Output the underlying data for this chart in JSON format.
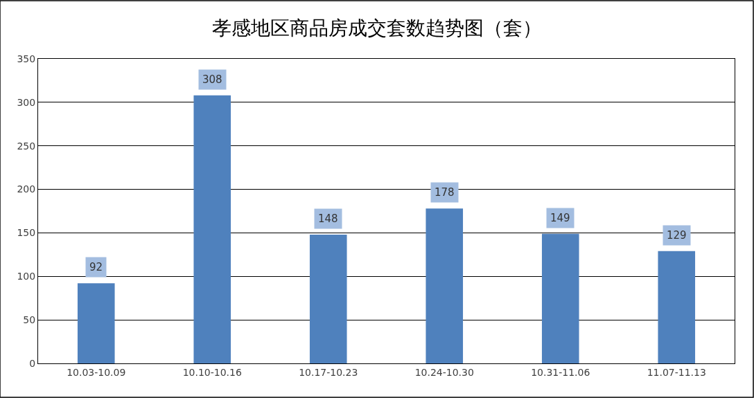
{
  "chart_data": {
    "type": "bar",
    "title": "孝感地区商品房成交套数趋势图（套）",
    "categories": [
      "10.03-10.09",
      "10.10-10.16",
      "10.17-10.23",
      "10.24-10.30",
      "10.31-11.06",
      "11.07-11.13"
    ],
    "values": [
      92,
      308,
      148,
      178,
      149,
      129
    ],
    "color": "#4f81bd",
    "ylim": [
      0,
      350
    ],
    "yticks": [
      0,
      50,
      100,
      150,
      200,
      250,
      300,
      350
    ],
    "grid": "y",
    "data_labels": true
  }
}
